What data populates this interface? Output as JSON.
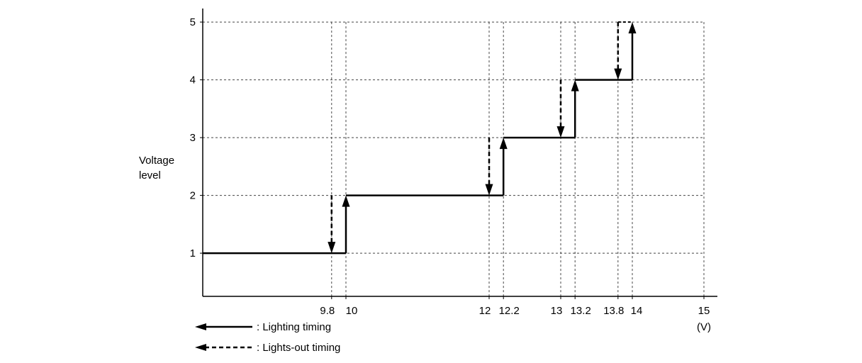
{
  "chart_data": {
    "type": "line",
    "title": "",
    "ylabel": [
      "Voltage",
      "level"
    ],
    "xunit": "(V)",
    "xlim": [
      8,
      15.2
    ],
    "ylim": [
      0.2,
      5.2
    ],
    "x_ticks": [
      "9.8",
      "10",
      "12",
      "12.2",
      "13",
      "13.2",
      "13.8",
      "14",
      "15"
    ],
    "y_ticks": [
      "1",
      "2",
      "3",
      "4",
      "5"
    ],
    "grid": true,
    "legend": {
      "placement": "bottom-left",
      "entries": [
        {
          "style": "solid",
          "label": ": Lighting timing"
        },
        {
          "style": "dashed",
          "label": ": Lights-out timing"
        }
      ]
    },
    "series": [
      {
        "style": "solid",
        "points": [
          [
            8,
            1
          ],
          [
            10,
            1
          ],
          [
            10,
            2
          ],
          [
            12.2,
            2
          ],
          [
            12.2,
            3
          ],
          [
            13.2,
            3
          ],
          [
            13.2,
            4
          ],
          [
            14,
            4
          ],
          [
            14,
            5
          ]
        ],
        "arrows_up": [
          [
            10,
            1,
            2
          ],
          [
            12.2,
            2,
            3
          ],
          [
            13.2,
            3,
            4
          ],
          [
            14,
            4,
            5
          ]
        ]
      },
      {
        "style": "dashed",
        "arrows_down": [
          [
            9.8,
            2,
            1
          ],
          [
            12,
            3,
            2
          ],
          [
            13,
            4,
            3
          ],
          [
            13.8,
            5,
            4
          ]
        ]
      }
    ],
    "colors": {
      "line": "#000000",
      "grid": "#444444",
      "background": "#ffffff"
    }
  }
}
